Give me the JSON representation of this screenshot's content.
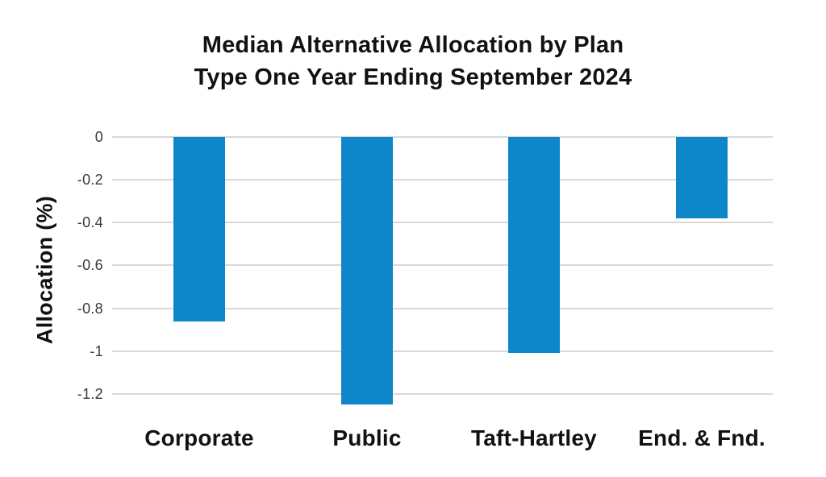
{
  "title": {
    "line1": "Median Alternative Allocation by Plan",
    "line2": "Type One Year Ending September 2024"
  },
  "chart_data": {
    "type": "bar",
    "title": "Median Alternative Allocation by Plan Type One Year Ending September 2024",
    "categories": [
      "Corporate",
      "Public",
      "Taft-Hartley",
      "End. & Fnd."
    ],
    "values": [
      -0.86,
      -1.25,
      -1.01,
      -0.38
    ],
    "xlabel": "",
    "ylabel": "Allocation (%)",
    "ylim": [
      -1.26,
      0
    ],
    "yticks": [
      0,
      -0.2,
      -0.4,
      -0.6,
      -0.8,
      -1,
      -1.2
    ],
    "ytick_labels": [
      "0",
      "-0.2",
      "-0.4",
      "-0.6",
      "-0.8",
      "-1",
      "-1.2"
    ],
    "grid": true,
    "legend": null,
    "bar_color": "#0d87c9",
    "grid_color": "#d9d9d9",
    "text_color": "#121212",
    "tick_text_color": "#3a3a3a",
    "background_color": "#ffffff"
  }
}
